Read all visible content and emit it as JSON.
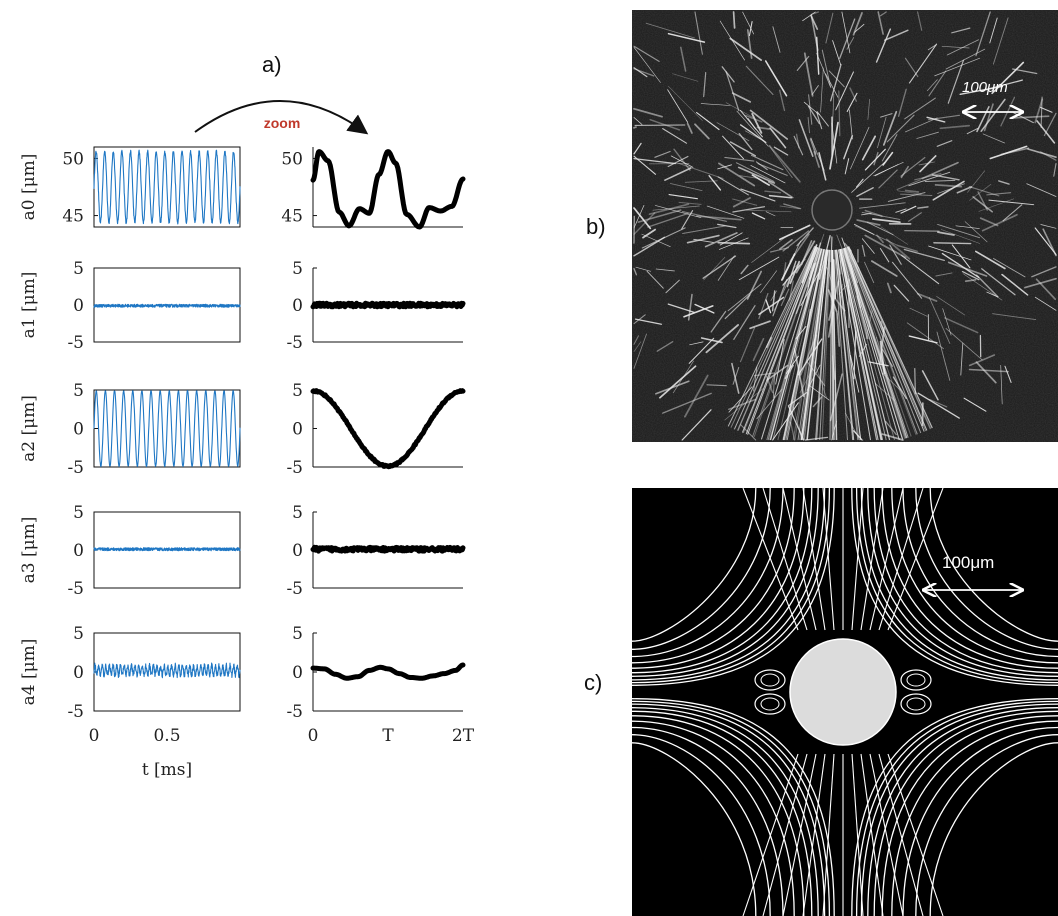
{
  "panel_labels": {
    "a": "a)",
    "b": "b)",
    "c": "c)"
  },
  "zoom_label": "zoom",
  "colors": {
    "raw_series": "#1f77c4",
    "zoom_series": "#000000",
    "zoom_text": "#c0392b",
    "sphere_fill": "#dcdcdc"
  },
  "scale_bars": {
    "b": "100μm",
    "c": "100μm"
  },
  "chart_data": [
    {
      "type": "line",
      "name": "a0-raw",
      "ylabel": "a0 [μm]",
      "ylim": [
        44,
        51
      ],
      "yticks": [
        "50",
        "45"
      ],
      "ytick_values": [
        50,
        45
      ],
      "xlim": [
        0,
        1
      ],
      "xticks": [],
      "series": [
        {
          "kind": "oscillation",
          "mean": 47.5,
          "amplitude": 3.1,
          "cycles": 17,
          "noise": 0.15,
          "style": "thin"
        }
      ]
    },
    {
      "type": "line",
      "name": "a0-zoom",
      "ylabel": "",
      "ylim": [
        44,
        51
      ],
      "yticks": [
        "50",
        "45"
      ],
      "ytick_values": [
        50,
        45
      ],
      "xlim": [
        0,
        2
      ],
      "xticks": [],
      "series": [
        {
          "x": [
            0,
            0.08,
            0.2,
            0.35,
            0.48,
            0.62,
            0.75,
            0.88,
            1.0,
            1.1,
            1.25,
            1.42,
            1.55,
            1.7,
            1.85,
            2.0
          ],
          "y": [
            48.1,
            50.6,
            49.8,
            45.3,
            44.1,
            45.6,
            45.2,
            48.6,
            50.6,
            49.6,
            45.1,
            44.0,
            45.7,
            45.4,
            45.8,
            48.2
          ],
          "style": "thick"
        }
      ]
    },
    {
      "type": "line",
      "name": "a1-raw",
      "ylabel": "a1 [μm]",
      "ylim": [
        -5,
        5
      ],
      "yticks": [
        "5",
        "0",
        "-5"
      ],
      "ytick_values": [
        5,
        0,
        -5
      ],
      "xlim": [
        0,
        1
      ],
      "xticks": [],
      "series": [
        {
          "kind": "noise",
          "mean": -0.1,
          "amplitude": 0.0,
          "cycles": 0,
          "noise": 0.2,
          "style": "thin"
        }
      ]
    },
    {
      "type": "line",
      "name": "a1-zoom",
      "ylabel": "",
      "ylim": [
        -5,
        5
      ],
      "yticks": [
        "5",
        "0",
        "-5"
      ],
      "ytick_values": [
        5,
        0,
        -5
      ],
      "xlim": [
        0,
        2
      ],
      "xticks": [],
      "series": [
        {
          "kind": "noise",
          "mean": 0.0,
          "amplitude": 0.0,
          "cycles": 0,
          "noise": 0.25,
          "style": "thick"
        }
      ]
    },
    {
      "type": "line",
      "name": "a2-raw",
      "ylabel": "a2 [μm]",
      "ylim": [
        -5,
        5
      ],
      "yticks": [
        "5",
        "0",
        "-5"
      ],
      "ytick_values": [
        5,
        0,
        -5
      ],
      "xlim": [
        0,
        1
      ],
      "xticks": [],
      "series": [
        {
          "kind": "oscillation",
          "mean": 0,
          "amplitude": 4.9,
          "cycles": 16,
          "noise": 0.05,
          "style": "thin"
        }
      ]
    },
    {
      "type": "line",
      "name": "a2-zoom",
      "ylabel": "",
      "ylim": [
        -5,
        5
      ],
      "yticks": [
        "5",
        "0",
        "-5"
      ],
      "ytick_values": [
        5,
        0,
        -5
      ],
      "xlim": [
        0,
        2
      ],
      "xticks": [],
      "series": [
        {
          "kind": "cosine",
          "mean": 0,
          "amplitude": 4.9,
          "cycles": 1,
          "noise": 0.1,
          "style": "thick"
        }
      ]
    },
    {
      "type": "line",
      "name": "a3-raw",
      "ylabel": "a3 [μm]",
      "ylim": [
        -5,
        5
      ],
      "yticks": [
        "5",
        "0",
        "-5"
      ],
      "ytick_values": [
        5,
        0,
        -5
      ],
      "xlim": [
        0,
        1
      ],
      "xticks": [],
      "series": [
        {
          "kind": "noise",
          "mean": 0.1,
          "amplitude": 0.0,
          "cycles": 0,
          "noise": 0.2,
          "style": "thin"
        }
      ]
    },
    {
      "type": "line",
      "name": "a3-zoom",
      "ylabel": "",
      "ylim": [
        -5,
        5
      ],
      "yticks": [
        "5",
        "0",
        "-5"
      ],
      "ytick_values": [
        5,
        0,
        -5
      ],
      "xlim": [
        0,
        2
      ],
      "xticks": [],
      "series": [
        {
          "kind": "noise",
          "mean": 0.1,
          "amplitude": 0.0,
          "cycles": 0,
          "noise": 0.25,
          "style": "thick"
        }
      ]
    },
    {
      "type": "line",
      "name": "a4-raw",
      "ylabel": "a4 [μm]",
      "ylim": [
        -5,
        5
      ],
      "yticks": [
        "5",
        "0",
        "-5"
      ],
      "ytick_values": [
        5,
        0,
        -5
      ],
      "xlim": [
        0,
        1
      ],
      "xticks": [
        "0",
        "0.5"
      ],
      "xtick_values": [
        0,
        0.5
      ],
      "xlabel": "t [ms]",
      "series": [
        {
          "kind": "oscillation",
          "mean": 0.2,
          "amplitude": 0.6,
          "cycles": 40,
          "noise": 0.35,
          "style": "thin"
        }
      ]
    },
    {
      "type": "line",
      "name": "a4-zoom",
      "ylabel": "",
      "ylim": [
        -5,
        5
      ],
      "yticks": [
        "5",
        "0",
        "-5"
      ],
      "ytick_values": [
        5,
        0,
        -5
      ],
      "xlim": [
        0,
        2
      ],
      "xticks": [
        "0",
        "T",
        "2T"
      ],
      "xtick_values": [
        0,
        1,
        2
      ],
      "xlabel": "",
      "series": [
        {
          "x": [
            0,
            0.15,
            0.3,
            0.45,
            0.6,
            0.75,
            0.9,
            1.0,
            1.15,
            1.3,
            1.45,
            1.6,
            1.75,
            1.9,
            2.0
          ],
          "y": [
            0.5,
            0.4,
            -0.3,
            -0.8,
            -0.6,
            0.2,
            0.6,
            0.4,
            -0.2,
            -0.7,
            -0.8,
            -0.5,
            -0.2,
            0.2,
            0.9
          ],
          "style": "thick"
        }
      ]
    }
  ]
}
